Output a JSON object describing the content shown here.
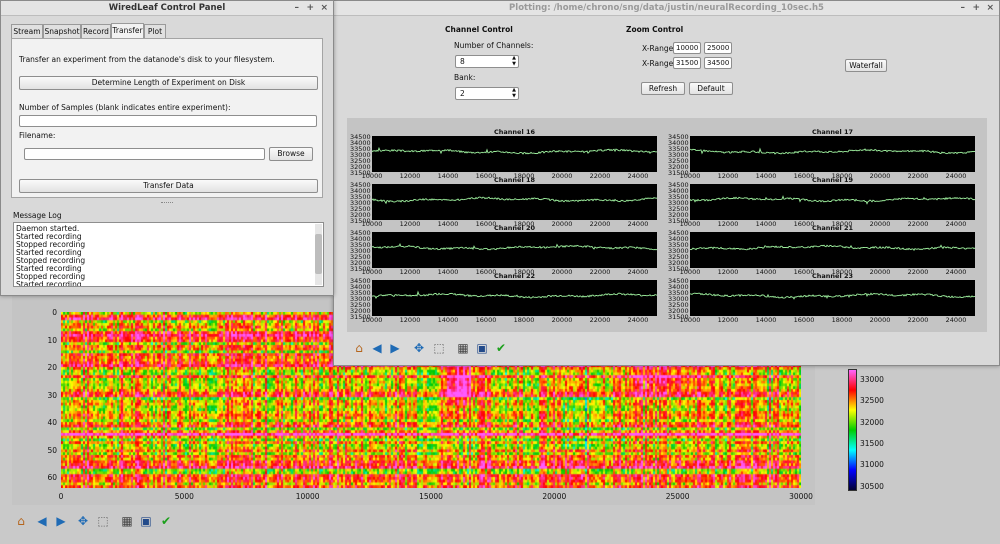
{
  "heatmap": {
    "y_ticks": [
      "0",
      "10",
      "20",
      "30",
      "40",
      "50",
      "60"
    ],
    "x_ticks": [
      "0",
      "5000",
      "10000",
      "15000",
      "20000",
      "25000",
      "30000"
    ],
    "colorbar_ticks": [
      "33000",
      "32500",
      "32000",
      "31500",
      "31000",
      "30500"
    ]
  },
  "control_panel": {
    "title": "WiredLeaf Control Panel",
    "window_buttons": [
      "–",
      "+",
      "×"
    ],
    "tabs": [
      "Stream",
      "Snapshot",
      "Record",
      "Transfer",
      "Plot"
    ],
    "active_tab": "Transfer",
    "description": "Transfer an experiment from the datanode's disk to your filesystem.",
    "determine_label": "Determine Length of Experiment on Disk",
    "samples_label": "Number of Samples (blank indicates entire experiment):",
    "samples_value": "",
    "filename_label": "Filename:",
    "filename_value": "",
    "browse_label": "Browse",
    "transfer_label": "Transfer Data",
    "message_log_label": "Message Log",
    "message_log": [
      "Daemon started.",
      "Started recording",
      "Stopped recording",
      "Started recording",
      "Stopped recording",
      "Started recording",
      "Stopped recording",
      "Started recording"
    ]
  },
  "plot_window": {
    "title": "Plotting: /home/chrono/sng/data/justin/neuralRecording_10sec.h5",
    "window_buttons": [
      "–",
      "+",
      "×"
    ],
    "channel_control": {
      "heading": "Channel Control",
      "num_channels_label": "Number of Channels:",
      "num_channels_value": "8",
      "bank_label": "Bank:",
      "bank_value": "2"
    },
    "zoom_control": {
      "heading": "Zoom Control",
      "x_range_label": "X-Range:",
      "x_min": "10000",
      "x_max": "25000",
      "y_range_label": "X-Range:",
      "y_min": "31500",
      "y_max": "34500",
      "refresh_label": "Refresh",
      "default_label": "Default"
    },
    "waterfall_label": "Waterfall",
    "channel_titles": [
      "Channel 16",
      "Channel 17",
      "Channel 18",
      "Channel 19",
      "Channel 20",
      "Channel 21",
      "Channel 22",
      "Channel 23"
    ],
    "y_tick_labels": [
      "34500",
      "34000",
      "33500",
      "33000",
      "32500",
      "32000",
      "31500"
    ],
    "x_tick_labels": [
      "10000",
      "12000",
      "14000",
      "16000",
      "18000",
      "20000",
      "22000",
      "24000"
    ]
  },
  "chart_data": [
    {
      "type": "heatmap",
      "title": "",
      "xlabel": "",
      "ylabel": "",
      "xlim": [
        0,
        30000
      ],
      "ylim": [
        63,
        0
      ],
      "colorbar": {
        "min": 30400,
        "max": 33250,
        "ticks": [
          33000,
          32500,
          32000,
          31500,
          31000,
          30500
        ]
      },
      "note": "64 channels x 30000 samples; mostly 32600-33100 with high band around channels 20-35 near sample 16000"
    },
    {
      "type": "line",
      "series": [
        {
          "name": "Channel 16"
        },
        {
          "name": "Channel 17"
        },
        {
          "name": "Channel 18"
        },
        {
          "name": "Channel 19"
        },
        {
          "name": "Channel 20"
        },
        {
          "name": "Channel 21"
        },
        {
          "name": "Channel 22"
        },
        {
          "name": "Channel 23"
        }
      ],
      "xlim": [
        10000,
        25000
      ],
      "ylim": [
        31500,
        34500
      ],
      "approx_level": 33200,
      "line_color": "#9ef09e",
      "background": "#000000"
    }
  ],
  "toolbar_icons": [
    "home-icon",
    "back-icon",
    "forward-icon",
    "pan-icon",
    "zoom-icon",
    "configure-icon",
    "save-icon",
    "check-icon"
  ]
}
